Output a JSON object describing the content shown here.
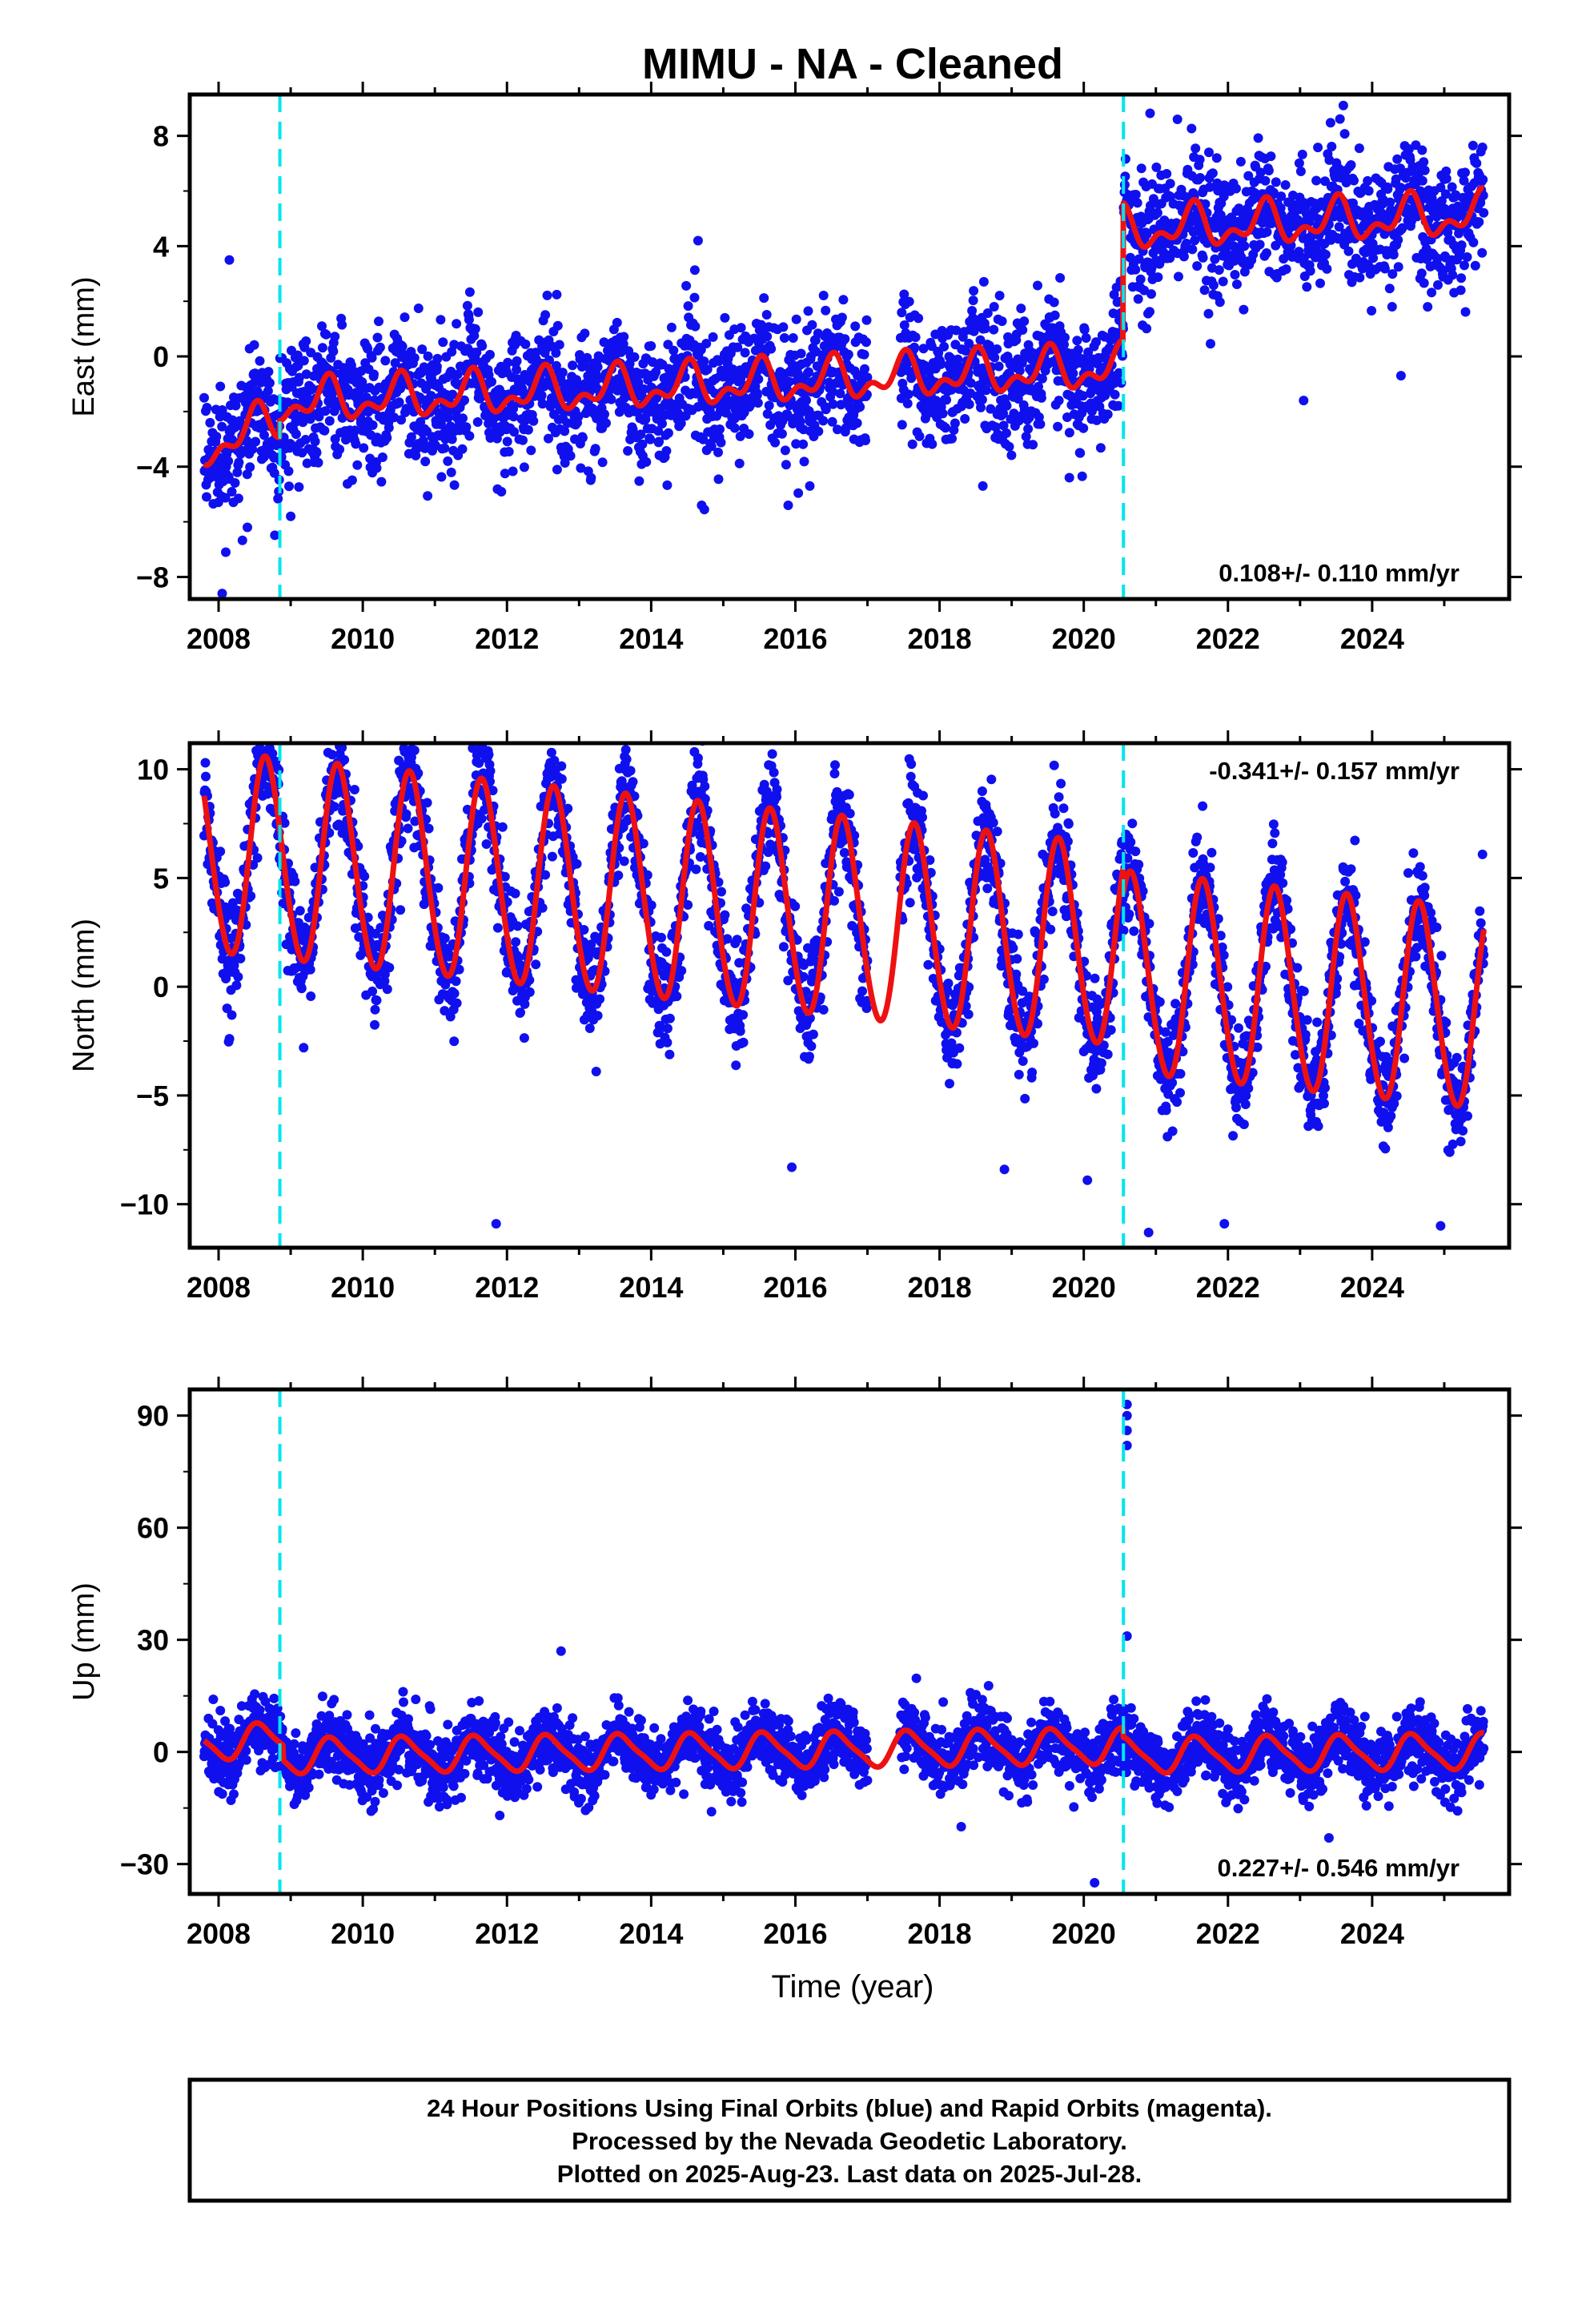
{
  "chart_data": {
    "title": "MIMU  - NA - Cleaned",
    "xlabel": "Time (year)",
    "x_tick_labels": [
      "2008",
      "2010",
      "2012",
      "2014",
      "2016",
      "2018",
      "2020",
      "2022",
      "2024"
    ],
    "xlim": [
      2007.6,
      2025.9
    ],
    "colors": {
      "data": "#1010ee",
      "model": "#ee1111",
      "step": "#00e5ee",
      "frame": "#000000"
    },
    "offsets_year": [
      2008.85,
      2020.55
    ],
    "data_gap": [
      2017.0,
      2017.45
    ],
    "panels": [
      {
        "type": "scatter",
        "name": "east",
        "ylabel": "East (mm)",
        "ylim": [
          -8.8,
          9.5
        ],
        "yticks": [
          -8,
          -4,
          0,
          4,
          8
        ],
        "y_tick_labels": [
          "−8",
          "−4",
          "0",
          "4",
          "8"
        ],
        "rate_label": "0.108+/- 0.110 mm/yr",
        "rate_position": "bottom-right",
        "x_range": [
          2007.8,
          2025.55
        ],
        "model": {
          "start": 2007.8,
          "end": 2025.55,
          "base": -0.9,
          "trend": 0.108,
          "annual_amp": 0.6,
          "annual_phase": 4.7,
          "semi_amp": 0.4,
          "semi_phase": 1.0,
          "steps": [
            {
              "year": 2008.85,
              "value": 1.0
            },
            {
              "year": 2020.55,
              "value": 5.0
            }
          ],
          "early": {
            "end": 2008.85,
            "slope": -0.9
          }
        },
        "noise_sd": 1.0,
        "outliers": [
          {
            "x": 2008.05,
            "y": -8.6
          },
          {
            "x": 2008.1,
            "y": -7.1
          },
          {
            "x": 2008.15,
            "y": 3.5
          },
          {
            "x": 2008.4,
            "y": -6.2
          },
          {
            "x": 2009.0,
            "y": -5.8
          },
          {
            "x": 2014.65,
            "y": 4.2
          },
          {
            "x": 2014.7,
            "y": -5.4
          },
          {
            "x": 2015.9,
            "y": -5.4
          },
          {
            "x": 2016.2,
            "y": -4.7
          },
          {
            "x": 2018.6,
            "y": -4.7
          },
          {
            "x": 2019.8,
            "y": -4.4
          },
          {
            "x": 2023.05,
            "y": -1.6
          },
          {
            "x": 2023.6,
            "y": 9.1
          },
          {
            "x": 2021.3,
            "y": 8.6
          },
          {
            "x": 2024.4,
            "y": -0.7
          }
        ]
      },
      {
        "type": "scatter",
        "name": "north",
        "ylabel": "North (mm)",
        "ylim": [
          -12,
          11.2
        ],
        "yticks": [
          -10,
          -5,
          0,
          5,
          10
        ],
        "y_tick_labels": [
          "−10",
          "−5",
          "0",
          "5",
          "10"
        ],
        "rate_label": "-0.341+/- 0.157 mm/yr",
        "rate_position": "top-right",
        "x_range": [
          2007.8,
          2025.55
        ],
        "model": {
          "start": 2007.8,
          "end": 2025.55,
          "base": 3.3,
          "trend": -0.341,
          "annual_amp": 4.6,
          "annual_phase": 3.7,
          "semi_amp": 0.3,
          "semi_phase": 0.5,
          "steps": [
            {
              "year": 2020.55,
              "value": -1.2
            }
          ]
        },
        "noise_sd": 1.1,
        "outliers": [
          {
            "x": 2011.85,
            "y": -10.9
          },
          {
            "x": 2012.6,
            "y": 10.3
          },
          {
            "x": 2014.6,
            "y": 10.8
          },
          {
            "x": 2015.95,
            "y": -8.3
          },
          {
            "x": 2018.9,
            "y": -8.4
          },
          {
            "x": 2020.05,
            "y": -8.9
          },
          {
            "x": 2020.9,
            "y": -11.3
          },
          {
            "x": 2021.95,
            "y": -10.9
          },
          {
            "x": 2024.95,
            "y": -11.0
          },
          {
            "x": 2023.6,
            "y": 5.4
          },
          {
            "x": 2008.6,
            "y": 9.6
          },
          {
            "x": 2009.5,
            "y": 9.5
          }
        ]
      },
      {
        "type": "scatter",
        "name": "up",
        "ylabel": "Up (mm)",
        "ylim": [
          -38,
          97
        ],
        "yticks": [
          -30,
          0,
          30,
          60,
          90
        ],
        "y_tick_labels": [
          "−30",
          "0",
          "30",
          "60",
          "90"
        ],
        "rate_label": "0.227+/- 0.546 mm/yr",
        "rate_position": "bottom-right",
        "x_range": [
          2007.8,
          2025.55
        ],
        "model": {
          "start": 2007.8,
          "end": 2025.55,
          "base": 0.5,
          "trend": 0.227,
          "annual_amp": 4.5,
          "annual_phase": 4.2,
          "semi_amp": 1.0,
          "semi_phase": 2.0,
          "steps": [
            {
              "year": 2020.55,
              "value": -2.5
            }
          ],
          "early": {
            "end": 2008.9,
            "slope": 0.0
          }
        },
        "noise_sd": 4.0,
        "outliers": [
          {
            "x": 2020.6,
            "y": 93
          },
          {
            "x": 2020.6,
            "y": 90
          },
          {
            "x": 2020.6,
            "y": 86
          },
          {
            "x": 2020.6,
            "y": 82
          },
          {
            "x": 2020.6,
            "y": 31
          },
          {
            "x": 2020.15,
            "y": -35
          },
          {
            "x": 2012.75,
            "y": 27
          },
          {
            "x": 2011.9,
            "y": -17
          },
          {
            "x": 2009.05,
            "y": -14
          },
          {
            "x": 2018.3,
            "y": -20
          },
          {
            "x": 2023.4,
            "y": -23
          }
        ]
      }
    ]
  },
  "footer": {
    "lines": [
      "24 Hour Positions Using Final Orbits (blue) and Rapid Orbits (magenta).",
      "Processed by the Nevada Geodetic Laboratory.",
      "Plotted on 2025-Aug-23. Last data on 2025-Jul-28."
    ]
  }
}
